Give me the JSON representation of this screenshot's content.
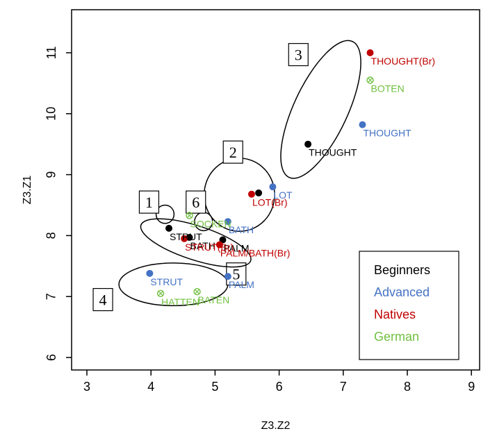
{
  "chart_data": {
    "type": "scatter",
    "xlabel": "Z3.Z2",
    "ylabel": "Z3.Z1",
    "xlim": [
      2.9,
      9.2
    ],
    "ylim": [
      5.8,
      11.8
    ],
    "x_ticks": [
      "3",
      "4",
      "5",
      "6",
      "7",
      "8",
      "9"
    ],
    "y_ticks": [
      "6",
      "7",
      "8",
      "9",
      "10",
      "11"
    ],
    "legend": {
      "position": "bottom-right",
      "entries": [
        {
          "name": "Beginners",
          "color": "#000000"
        },
        {
          "name": "Advanced",
          "color": "#4472c4"
        },
        {
          "name": "Natives",
          "color": "#c00000"
        },
        {
          "name": "German",
          "color": "#70c040"
        }
      ]
    },
    "series": [
      {
        "name": "Beginners",
        "color": "#000000",
        "marker": "filled",
        "points": [
          {
            "x": 6.45,
            "y": 9.5,
            "label": "THOUGHT"
          },
          {
            "x": 5.68,
            "y": 8.7,
            "label": ""
          },
          {
            "x": 4.28,
            "y": 8.12,
            "label": "STRUT"
          },
          {
            "x": 4.6,
            "y": 7.97,
            "label": "BATH"
          },
          {
            "x": 5.12,
            "y": 7.93,
            "label": "PALM"
          }
        ]
      },
      {
        "name": "Advanced",
        "color": "#4472c4",
        "marker": "filled",
        "points": [
          {
            "x": 7.3,
            "y": 9.82,
            "label": "THOUGHT"
          },
          {
            "x": 5.9,
            "y": 8.8,
            "label": "LOT"
          },
          {
            "x": 5.2,
            "y": 8.23,
            "label": "BATH"
          },
          {
            "x": 5.2,
            "y": 7.33,
            "label": "PALM"
          },
          {
            "x": 3.98,
            "y": 7.38,
            "label": "STRUT"
          }
        ]
      },
      {
        "name": "Natives",
        "color": "#c00000",
        "marker": "filled",
        "points": [
          {
            "x": 7.42,
            "y": 11.0,
            "label": "THOUGHT(Br)"
          },
          {
            "x": 5.57,
            "y": 8.68,
            "label": "LOT(Br)"
          },
          {
            "x": 4.52,
            "y": 7.95,
            "label": "STRUT(Br)"
          },
          {
            "x": 5.07,
            "y": 7.85,
            "label": "PALM/BATH(Br)"
          }
        ]
      },
      {
        "name": "German",
        "color": "#70c040",
        "marker": "crossed-circle",
        "points": [
          {
            "x": 7.42,
            "y": 10.55,
            "label": "BOTEN"
          },
          {
            "x": 4.6,
            "y": 8.33,
            "label": "SOCKEN"
          },
          {
            "x": 4.15,
            "y": 7.05,
            "label": "HATTEN"
          },
          {
            "x": 4.72,
            "y": 7.08,
            "label": "BATEN"
          }
        ]
      }
    ],
    "annotations": [
      {
        "label": "1",
        "shape": "circle",
        "cx": 4.22,
        "cy": 8.35,
        "rx": 0.14,
        "ry": 0.15,
        "rot": 0,
        "box": [
          3.97,
          8.55
        ]
      },
      {
        "label": "2",
        "shape": "circle",
        "cx": 5.38,
        "cy": 8.67,
        "rx": 0.55,
        "ry": 0.6,
        "rot": 0,
        "box": [
          5.28,
          9.37
        ]
      },
      {
        "label": "3",
        "shape": "ellipse",
        "cx": 6.65,
        "cy": 10.07,
        "rx": 0.42,
        "ry": 1.23,
        "rot": 25,
        "box": [
          6.3,
          10.97
        ]
      },
      {
        "label": "4",
        "shape": "ellipse",
        "cx": 4.35,
        "cy": 7.2,
        "rx": 0.85,
        "ry": 0.35,
        "rot": 0,
        "box": [
          3.25,
          6.95
        ]
      },
      {
        "label": "5",
        "shape": "none",
        "box": [
          5.33,
          7.37
        ]
      },
      {
        "label": "6",
        "shape": "circle",
        "cx": 4.82,
        "cy": 8.23,
        "rx": 0.14,
        "ry": 0.15,
        "rot": 0,
        "box": [
          4.7,
          8.55
        ]
      },
      {
        "label": "",
        "shape": "ellipse",
        "cx": 4.7,
        "cy": 7.88,
        "rx": 0.9,
        "ry": 0.28,
        "rot": 18,
        "box": null
      }
    ]
  }
}
